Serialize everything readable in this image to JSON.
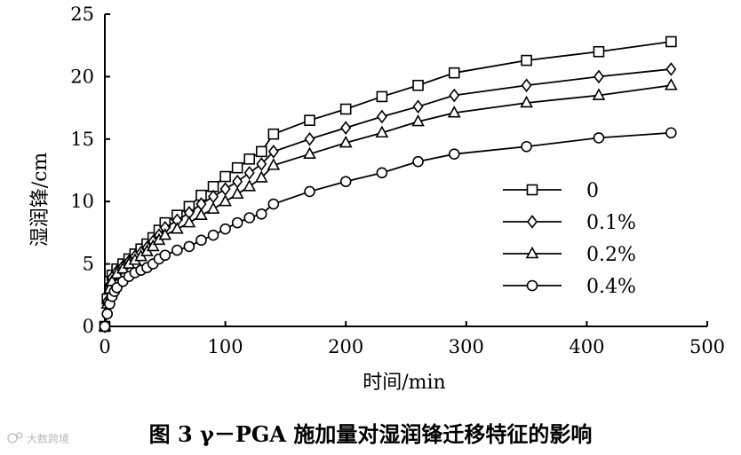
{
  "chart_data": {
    "type": "line",
    "title": "",
    "xlabel": "时间/min",
    "ylabel": "湿润锋/cm",
    "xlim": [
      0,
      500
    ],
    "ylim": [
      0,
      25
    ],
    "x_ticks": [
      0,
      100,
      200,
      300,
      400,
      500
    ],
    "y_ticks": [
      0,
      5,
      10,
      15,
      20,
      25
    ],
    "grid": false,
    "legend_position": "right-middle",
    "series": [
      {
        "name": "0",
        "marker": "square",
        "points": [
          [
            0,
            0
          ],
          [
            2,
            2.2
          ],
          [
            4,
            3.6
          ],
          [
            6,
            4.1
          ],
          [
            10,
            4.6
          ],
          [
            15,
            5.0
          ],
          [
            20,
            5.4
          ],
          [
            25,
            5.8
          ],
          [
            30,
            6.2
          ],
          [
            35,
            6.6
          ],
          [
            40,
            7.1
          ],
          [
            45,
            7.7
          ],
          [
            50,
            8.3
          ],
          [
            60,
            8.9
          ],
          [
            70,
            9.6
          ],
          [
            80,
            10.5
          ],
          [
            90,
            11.2
          ],
          [
            100,
            12.0
          ],
          [
            110,
            12.7
          ],
          [
            120,
            13.4
          ],
          [
            130,
            14.0
          ],
          [
            140,
            15.4
          ],
          [
            170,
            16.5
          ],
          [
            200,
            17.4
          ],
          [
            230,
            18.4
          ],
          [
            260,
            19.3
          ],
          [
            290,
            20.3
          ],
          [
            350,
            21.3
          ],
          [
            410,
            22.0
          ],
          [
            470,
            22.8
          ]
        ]
      },
      {
        "name": "0.1%",
        "marker": "diamond",
        "points": [
          [
            0,
            0
          ],
          [
            2,
            2.0
          ],
          [
            4,
            3.3
          ],
          [
            6,
            3.9
          ],
          [
            10,
            4.4
          ],
          [
            15,
            4.8
          ],
          [
            20,
            5.2
          ],
          [
            25,
            5.6
          ],
          [
            30,
            5.9
          ],
          [
            35,
            6.3
          ],
          [
            40,
            6.8
          ],
          [
            45,
            7.3
          ],
          [
            50,
            7.9
          ],
          [
            60,
            8.5
          ],
          [
            70,
            9.1
          ],
          [
            80,
            9.8
          ],
          [
            90,
            10.4
          ],
          [
            100,
            11.0
          ],
          [
            110,
            11.6
          ],
          [
            120,
            12.3
          ],
          [
            130,
            13.0
          ],
          [
            140,
            14.0
          ],
          [
            170,
            15.0
          ],
          [
            200,
            15.9
          ],
          [
            230,
            16.8
          ],
          [
            260,
            17.6
          ],
          [
            290,
            18.5
          ],
          [
            350,
            19.3
          ],
          [
            410,
            20.0
          ],
          [
            470,
            20.6
          ]
        ]
      },
      {
        "name": "0.2%",
        "marker": "triangle",
        "points": [
          [
            0,
            0
          ],
          [
            2,
            1.8
          ],
          [
            4,
            3.0
          ],
          [
            6,
            3.6
          ],
          [
            10,
            4.2
          ],
          [
            15,
            4.6
          ],
          [
            20,
            5.0
          ],
          [
            25,
            5.3
          ],
          [
            30,
            5.6
          ],
          [
            35,
            6.0
          ],
          [
            40,
            6.4
          ],
          [
            45,
            6.9
          ],
          [
            50,
            7.3
          ],
          [
            60,
            7.8
          ],
          [
            70,
            8.3
          ],
          [
            80,
            8.9
          ],
          [
            90,
            9.4
          ],
          [
            100,
            10.0
          ],
          [
            110,
            10.6
          ],
          [
            120,
            11.2
          ],
          [
            130,
            11.9
          ],
          [
            140,
            12.9
          ],
          [
            170,
            13.8
          ],
          [
            200,
            14.7
          ],
          [
            230,
            15.5
          ],
          [
            260,
            16.4
          ],
          [
            290,
            17.1
          ],
          [
            350,
            17.9
          ],
          [
            410,
            18.5
          ],
          [
            470,
            19.3
          ]
        ]
      },
      {
        "name": "0.4%",
        "marker": "circle",
        "points": [
          [
            0,
            0
          ],
          [
            2,
            1.0
          ],
          [
            4,
            1.8
          ],
          [
            6,
            2.4
          ],
          [
            8,
            2.8
          ],
          [
            10,
            3.1
          ],
          [
            15,
            3.6
          ],
          [
            20,
            4.0
          ],
          [
            25,
            4.3
          ],
          [
            30,
            4.5
          ],
          [
            35,
            4.7
          ],
          [
            40,
            5.0
          ],
          [
            45,
            5.4
          ],
          [
            50,
            5.7
          ],
          [
            60,
            6.1
          ],
          [
            70,
            6.4
          ],
          [
            80,
            6.9
          ],
          [
            90,
            7.3
          ],
          [
            100,
            7.8
          ],
          [
            110,
            8.3
          ],
          [
            120,
            8.7
          ],
          [
            130,
            9.0
          ],
          [
            140,
            9.8
          ],
          [
            170,
            10.8
          ],
          [
            200,
            11.6
          ],
          [
            230,
            12.3
          ],
          [
            260,
            13.2
          ],
          [
            290,
            13.8
          ],
          [
            350,
            14.4
          ],
          [
            410,
            15.1
          ],
          [
            470,
            15.5
          ]
        ]
      }
    ]
  },
  "caption": "图 3  γ－PGA 施加量对湿润锋迁移特征的影响",
  "watermark": "大数跨境"
}
